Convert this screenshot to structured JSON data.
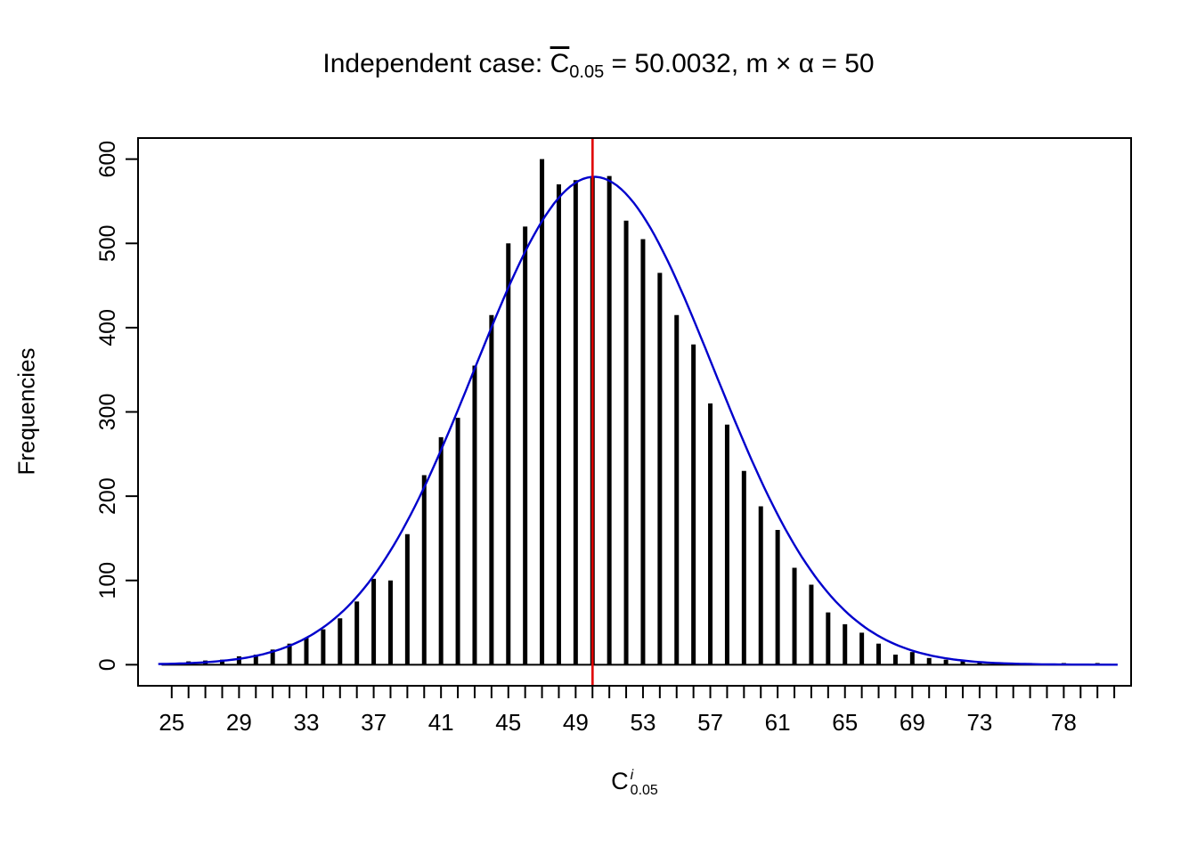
{
  "title": {
    "prefix": "Independent case: ",
    "c": "C",
    "sub": "0.05",
    "rest": " = 50.0032,  m × α = 50"
  },
  "labels": {
    "y": "Frequencies",
    "x_base": "C",
    "x_sup": "i",
    "x_sub": "0.05"
  },
  "chart_data": {
    "type": "bar",
    "subtype": "frequency-spikes-with-normal-curve",
    "title": "Independent case: C̄_0.05 = 50.0032, m × α = 50",
    "xlabel": "C^i_0.05",
    "ylabel": "Frequencies",
    "x": [
      25,
      26,
      27,
      28,
      29,
      30,
      31,
      32,
      33,
      34,
      35,
      36,
      37,
      38,
      39,
      40,
      41,
      42,
      43,
      44,
      45,
      46,
      47,
      48,
      49,
      50,
      51,
      52,
      53,
      54,
      55,
      56,
      57,
      58,
      59,
      60,
      61,
      62,
      63,
      64,
      65,
      66,
      67,
      68,
      69,
      70,
      71,
      72,
      73,
      74,
      75,
      76,
      77,
      78,
      79,
      80
    ],
    "values": [
      2,
      4,
      5,
      6,
      10,
      12,
      18,
      25,
      32,
      42,
      55,
      75,
      102,
      100,
      155,
      225,
      270,
      293,
      355,
      415,
      500,
      520,
      600,
      570,
      575,
      578,
      580,
      527,
      505,
      465,
      415,
      380,
      310,
      285,
      230,
      188,
      160,
      115,
      95,
      62,
      48,
      38,
      25,
      12,
      15,
      8,
      6,
      5,
      4,
      3,
      2,
      2,
      1,
      2,
      1,
      2
    ],
    "x_tick_labels": [
      25,
      29,
      33,
      37,
      41,
      45,
      49,
      53,
      57,
      61,
      65,
      69,
      73,
      78
    ],
    "x_minor_tick_from": 25,
    "x_minor_tick_to": 81,
    "y_ticks": [
      0,
      100,
      200,
      300,
      400,
      500,
      600
    ],
    "xlim": [
      23,
      82
    ],
    "ylim": [
      -25,
      625
    ],
    "grid": false,
    "legend": null,
    "bar_color": "#000000",
    "vline": {
      "x": 50.0032,
      "color": "#e00000",
      "meaning": "mean of C_0.05"
    },
    "curve": {
      "shape": "normal",
      "mean": 50.1,
      "sd": 7.1,
      "peak": 579,
      "color": "#0000cc"
    }
  }
}
